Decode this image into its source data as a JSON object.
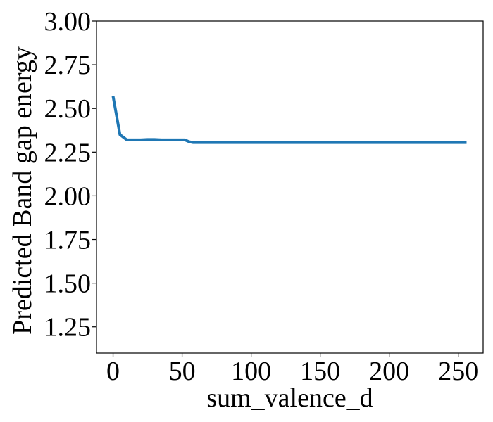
{
  "chart_data": {
    "type": "line",
    "title": "",
    "xlabel": "sum_valence_d",
    "ylabel": "Predicted Band gap energy",
    "xlim": [
      -12,
      268
    ],
    "ylim": [
      1.1,
      3.0
    ],
    "xticks": [
      0,
      50,
      100,
      150,
      200,
      250
    ],
    "yticks": [
      1.25,
      1.5,
      1.75,
      2.0,
      2.25,
      2.5,
      2.75,
      3.0
    ],
    "xtick_labels": [
      "0",
      "50",
      "100",
      "150",
      "200",
      "250"
    ],
    "ytick_labels": [
      "1.25",
      "1.50",
      "1.75",
      "2.00",
      "2.25",
      "2.50",
      "2.75",
      "3.00"
    ],
    "grid": false,
    "legend": "none",
    "series": [
      {
        "color": "#1f77b4",
        "x": [
          0,
          5,
          10,
          15,
          20,
          25,
          30,
          35,
          40,
          45,
          50,
          52,
          55,
          58,
          60,
          80,
          100,
          150,
          200,
          250,
          256
        ],
        "y": [
          2.57,
          2.35,
          2.32,
          2.32,
          2.32,
          2.322,
          2.322,
          2.32,
          2.32,
          2.32,
          2.32,
          2.32,
          2.31,
          2.305,
          2.305,
          2.305,
          2.305,
          2.305,
          2.305,
          2.305,
          2.305
        ]
      }
    ]
  }
}
